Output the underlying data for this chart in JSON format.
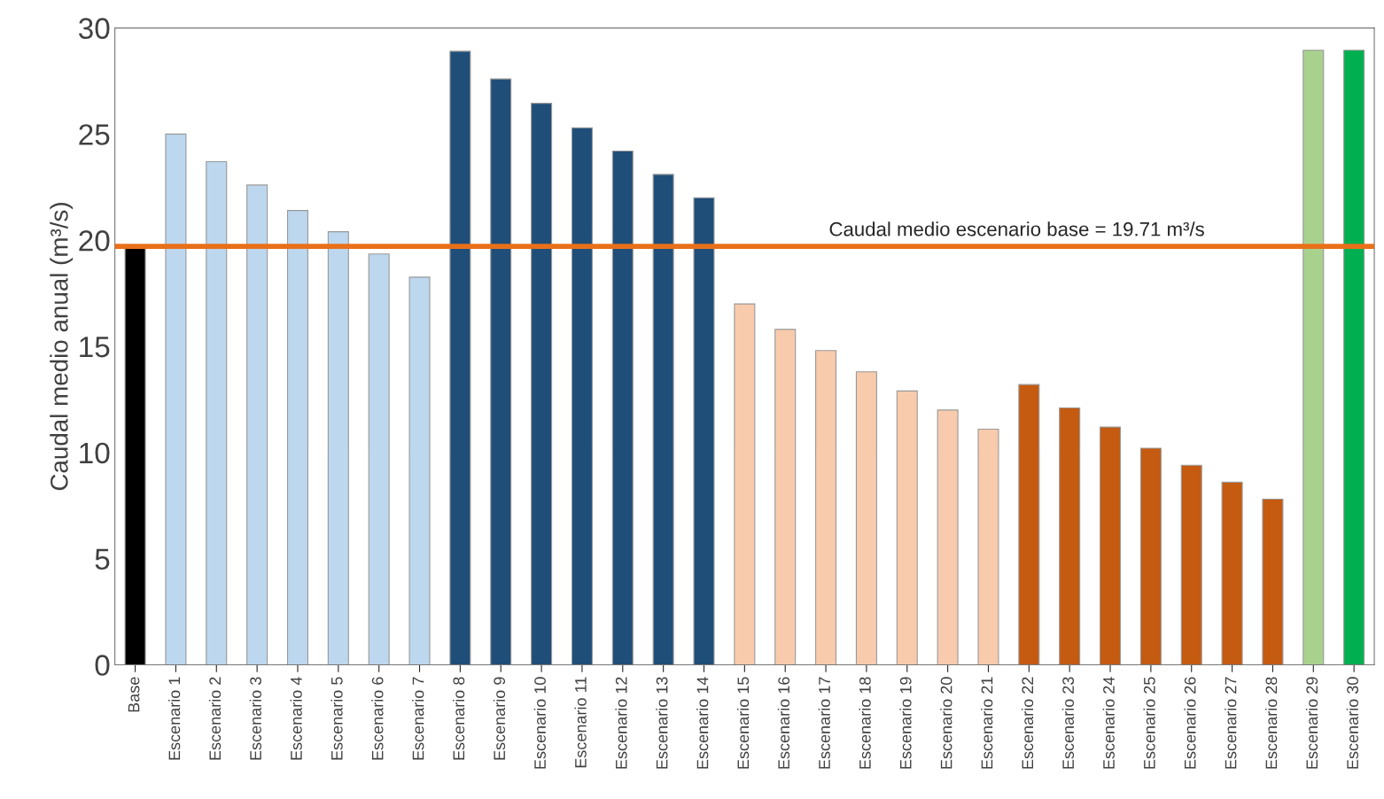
{
  "chart_data": {
    "type": "bar",
    "ylabel": "Caudal medio anual (m³/s)",
    "categories": [
      "Base",
      "Escenario 1",
      "Escenario 2",
      "Escenario 3",
      "Escenario 4",
      "Escenario 5",
      "Escenario 6",
      "Escenario 7",
      "Escenario 8",
      "Escenario 9",
      "Escenario 10",
      "Escenario 11",
      "Escenario 12",
      "Escenario 13",
      "Escenario 14",
      "Escenario 15",
      "Escenario 16",
      "Escenario 17",
      "Escenario 18",
      "Escenario 19",
      "Escenario 20",
      "Escenario 21",
      "Escenario 22",
      "Escenario 23",
      "Escenario 24",
      "Escenario 25",
      "Escenario 26",
      "Escenario 27",
      "Escenario 28",
      "Escenario 29",
      "Escenario 30"
    ],
    "values": [
      19.71,
      25.0,
      23.7,
      22.6,
      21.4,
      20.4,
      19.35,
      18.26,
      28.9,
      27.6,
      26.45,
      25.3,
      24.2,
      23.1,
      22.0,
      17.0,
      15.8,
      14.8,
      13.8,
      12.9,
      12.0,
      11.1,
      13.2,
      12.1,
      11.2,
      10.2,
      9.4,
      8.6,
      7.8,
      28.95,
      28.95
    ],
    "colors": [
      "#000000",
      "#bdd7ee",
      "#bdd7ee",
      "#bdd7ee",
      "#bdd7ee",
      "#bdd7ee",
      "#bdd7ee",
      "#bdd7ee",
      "#1f4e79",
      "#1f4e79",
      "#1f4e79",
      "#1f4e79",
      "#1f4e79",
      "#1f4e79",
      "#1f4e79",
      "#f8cbad",
      "#f8cbad",
      "#f8cbad",
      "#f8cbad",
      "#f8cbad",
      "#f8cbad",
      "#f8cbad",
      "#c55a11",
      "#c55a11",
      "#c55a11",
      "#c55a11",
      "#c55a11",
      "#c55a11",
      "#c55a11",
      "#a9d18e",
      "#00b050"
    ],
    "ylim": [
      0,
      30
    ],
    "yticks": [
      0,
      5,
      10,
      15,
      20,
      25,
      30
    ],
    "grid": false,
    "ref_lines": [
      {
        "axis": "y",
        "value": 19.71,
        "label": "Caudal medio escenario base = 19.71 m³/s",
        "color": "#e8701a"
      }
    ]
  }
}
